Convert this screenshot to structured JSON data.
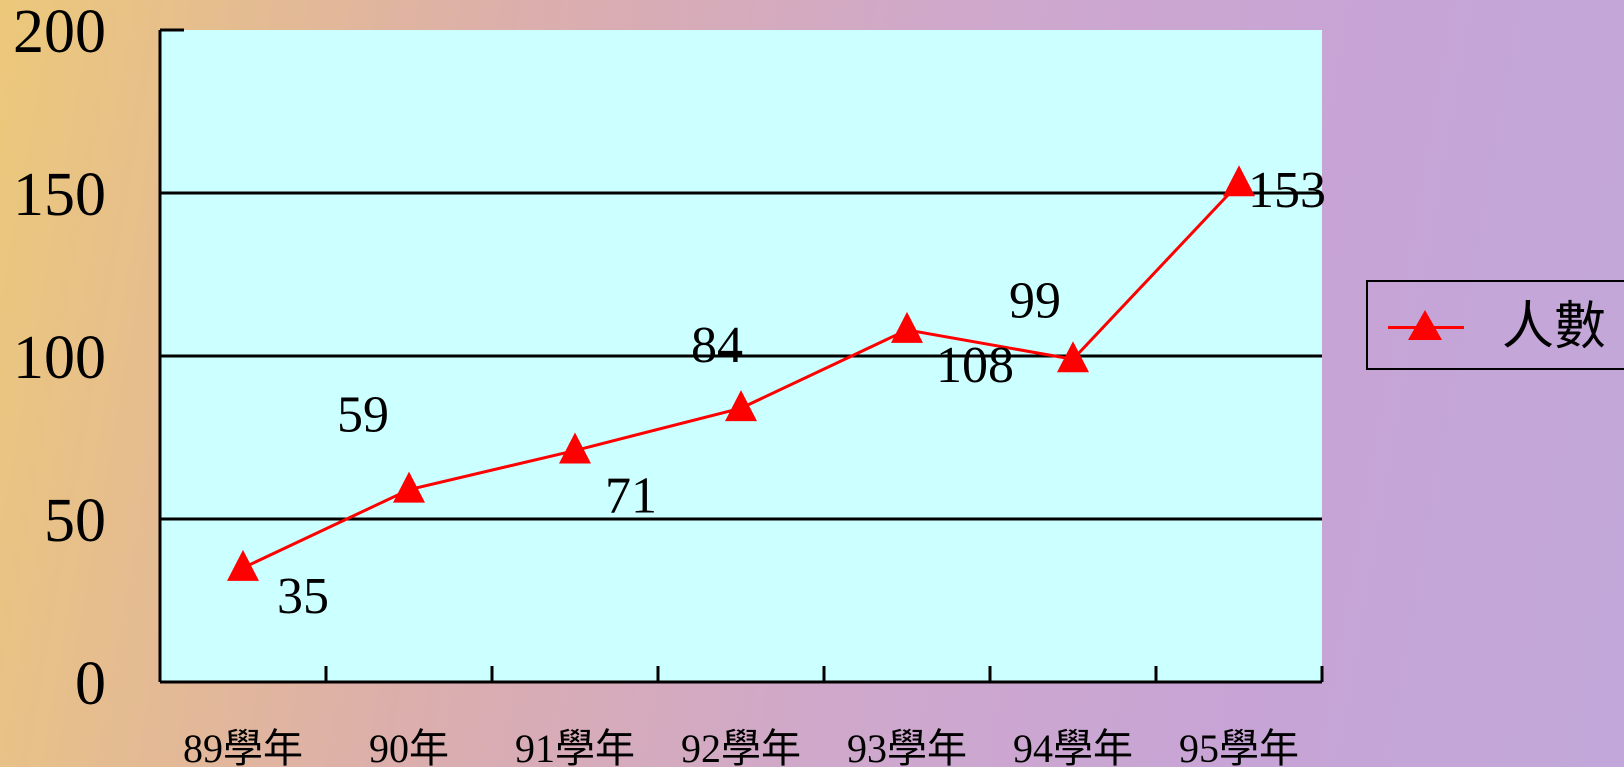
{
  "chart_data": {
    "type": "line",
    "categories": [
      "89學年",
      "90年",
      "91學年",
      "92學年",
      "93學年",
      "94學年",
      "95學年"
    ],
    "series": [
      {
        "name": "人數",
        "values": [
          35,
          59,
          71,
          84,
          108,
          99,
          153
        ],
        "color": "#ff0000",
        "marker": "triangle"
      }
    ],
    "ylim": [
      0,
      200
    ],
    "yticks": [
      "0",
      "50",
      "100",
      "150",
      "200"
    ],
    "grid": true,
    "legend_position": "right",
    "plot_background": "#ccffff",
    "data_labels": [
      "35",
      "59",
      "71",
      "84",
      "108",
      "99",
      "153"
    ]
  }
}
